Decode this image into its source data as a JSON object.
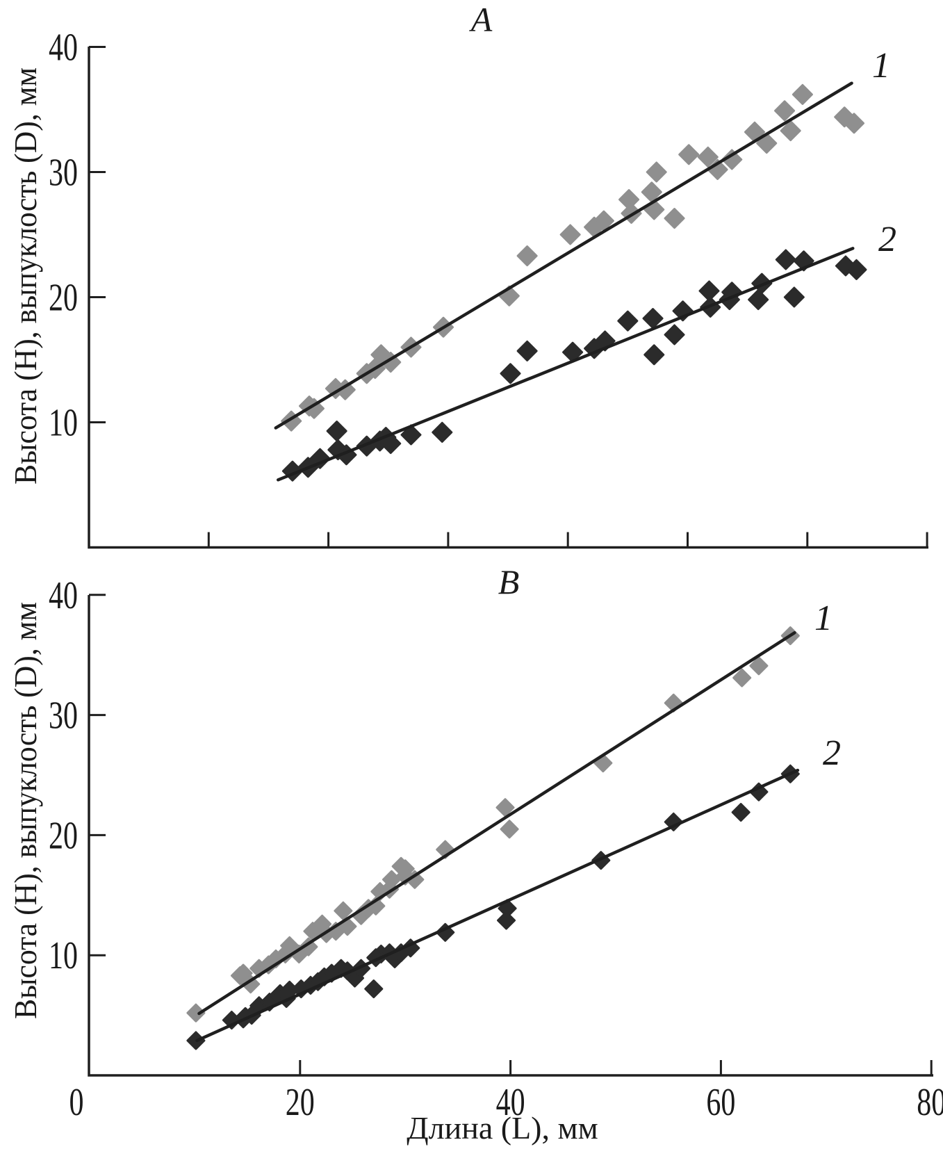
{
  "axes": {
    "x_title": "Длина (L), мм",
    "y_title": "Высота (H), выпуклость (D), мм"
  },
  "palette": {
    "series1_gray": "#8f8f8f",
    "series2_black": "#2b2b2b",
    "line_color": "#1f1f1f",
    "text_color": "#1a1a1a",
    "background": "#ffffff"
  },
  "chart_data": [
    {
      "type": "scatter",
      "panel_label": "A",
      "xlabel": "Длина (L), мм",
      "ylabel": "Высота (H), выпуклость (D), мм",
      "xlim": [
        0,
        70
      ],
      "ylim": [
        0,
        40
      ],
      "x_ticks": [
        10,
        20,
        30,
        40,
        50,
        60,
        70
      ],
      "x_tick_labels": [],
      "y_ticks": [
        10,
        20,
        30,
        40
      ],
      "y_tick_labels": [
        "10",
        "20",
        "30",
        "40"
      ],
      "grid": false,
      "legend_position": "inline-right",
      "series": [
        {
          "name": "1",
          "marker": "diamond",
          "color": "#8f8f8f",
          "label_at": [
            66.2,
            38.6
          ],
          "trend_line": {
            "x1": 15.6,
            "y1": 9.55,
            "x2": 63.7,
            "y2": 37.1
          },
          "points": [
            [
              16.9,
              10.1
            ],
            [
              18.4,
              11.3
            ],
            [
              18.8,
              11.1
            ],
            [
              20.6,
              12.7
            ],
            [
              21.4,
              12.6
            ],
            [
              23.2,
              13.9
            ],
            [
              23.9,
              14.3
            ],
            [
              24.4,
              15.4
            ],
            [
              25.2,
              14.8
            ],
            [
              26.9,
              16.0
            ],
            [
              29.6,
              17.6
            ],
            [
              35.1,
              20.1
            ],
            [
              36.6,
              23.3
            ],
            [
              40.2,
              25.0
            ],
            [
              42.2,
              25.6
            ],
            [
              43.0,
              26.1
            ],
            [
              45.1,
              27.8
            ],
            [
              45.3,
              26.7
            ],
            [
              47.0,
              28.4
            ],
            [
              47.2,
              27.0
            ],
            [
              47.4,
              30.0
            ],
            [
              48.9,
              26.3
            ],
            [
              50.1,
              31.4
            ],
            [
              51.7,
              31.2
            ],
            [
              52.5,
              30.2
            ],
            [
              53.7,
              31.0
            ],
            [
              55.6,
              33.2
            ],
            [
              56.6,
              32.3
            ],
            [
              58.1,
              34.9
            ],
            [
              58.6,
              33.3
            ],
            [
              59.6,
              36.2
            ],
            [
              63.1,
              34.4
            ],
            [
              63.9,
              33.9
            ]
          ]
        },
        {
          "name": "2",
          "marker": "diamond",
          "color": "#2b2b2b",
          "label_at": [
            66.7,
            24.7
          ],
          "trend_line": {
            "x1": 15.8,
            "y1": 5.4,
            "x2": 63.8,
            "y2": 23.9
          },
          "points": [
            [
              17.0,
              6.1
            ],
            [
              18.3,
              6.4
            ],
            [
              19.3,
              7.1
            ],
            [
              20.7,
              9.3
            ],
            [
              20.8,
              7.8
            ],
            [
              21.5,
              7.4
            ],
            [
              23.2,
              8.1
            ],
            [
              24.3,
              8.5
            ],
            [
              24.8,
              8.8
            ],
            [
              25.2,
              8.3
            ],
            [
              26.9,
              9.0
            ],
            [
              29.5,
              9.2
            ],
            [
              35.2,
              13.9
            ],
            [
              36.6,
              15.7
            ],
            [
              40.4,
              15.6
            ],
            [
              42.2,
              15.9
            ],
            [
              43.1,
              16.5
            ],
            [
              45.0,
              18.1
            ],
            [
              47.1,
              18.3
            ],
            [
              47.2,
              15.4
            ],
            [
              48.9,
              17.0
            ],
            [
              49.6,
              18.9
            ],
            [
              51.8,
              20.5
            ],
            [
              51.9,
              19.2
            ],
            [
              53.5,
              19.8
            ],
            [
              53.7,
              20.4
            ],
            [
              55.9,
              19.8
            ],
            [
              56.2,
              21.1
            ],
            [
              58.2,
              23.0
            ],
            [
              58.9,
              20.0
            ],
            [
              59.7,
              22.9
            ],
            [
              63.2,
              22.5
            ],
            [
              64.1,
              22.2
            ]
          ]
        }
      ]
    },
    {
      "type": "scatter",
      "panel_label": "B",
      "xlabel": "Длина (L), мм",
      "ylabel": "Высота (H), выпуклость (D), мм",
      "xlim": [
        0,
        80
      ],
      "ylim": [
        0,
        40
      ],
      "x_ticks": [
        20,
        40,
        60,
        80
      ],
      "x_tick_labels": [
        "0",
        "20",
        "40",
        "60",
        "80"
      ],
      "y_ticks": [
        10,
        20,
        30,
        40
      ],
      "y_tick_labels": [
        "10",
        "20",
        "30",
        "40"
      ],
      "grid": false,
      "legend_position": "inline-right",
      "series": [
        {
          "name": "1",
          "marker": "diamond",
          "color": "#8f8f8f",
          "label_at": [
            69.8,
            38.2
          ],
          "trend_line": {
            "x1": 10.4,
            "y1": 5.15,
            "x2": 67.0,
            "y2": 36.85
          },
          "points": [
            [
              10.1,
              5.2
            ],
            [
              14.3,
              8.3
            ],
            [
              14.6,
              8.5
            ],
            [
              15.3,
              7.6
            ],
            [
              16.1,
              8.9
            ],
            [
              17.0,
              9.2
            ],
            [
              17.7,
              9.7
            ],
            [
              18.6,
              10.1
            ],
            [
              19.0,
              10.8
            ],
            [
              19.9,
              10.1
            ],
            [
              20.8,
              10.7
            ],
            [
              21.2,
              12.0
            ],
            [
              22.1,
              12.6
            ],
            [
              22.5,
              11.8
            ],
            [
              23.4,
              12.0
            ],
            [
              24.1,
              13.7
            ],
            [
              24.5,
              12.4
            ],
            [
              25.8,
              13.3
            ],
            [
              26.5,
              13.9
            ],
            [
              27.2,
              14.1
            ],
            [
              27.6,
              15.3
            ],
            [
              28.5,
              15.5
            ],
            [
              28.7,
              16.3
            ],
            [
              29.6,
              17.4
            ],
            [
              30.0,
              17.2
            ],
            [
              30.0,
              16.6
            ],
            [
              30.9,
              16.3
            ],
            [
              33.8,
              18.8
            ],
            [
              39.5,
              22.3
            ],
            [
              39.9,
              20.5
            ],
            [
              48.8,
              26.0
            ],
            [
              55.5,
              31.0
            ],
            [
              62.0,
              33.1
            ],
            [
              63.6,
              34.1
            ],
            [
              66.6,
              36.6
            ]
          ]
        },
        {
          "name": "2",
          "marker": "diamond",
          "color": "#2b2b2b",
          "label_at": [
            70.6,
            26.9
          ],
          "trend_line": {
            "x1": 10.2,
            "y1": 2.9,
            "x2": 67.3,
            "y2": 25.4
          },
          "points": [
            [
              10.1,
              2.9
            ],
            [
              13.5,
              4.6
            ],
            [
              14.6,
              4.7
            ],
            [
              14.8,
              4.9
            ],
            [
              15.4,
              5.0
            ],
            [
              16.1,
              5.8
            ],
            [
              17.1,
              6.1
            ],
            [
              18.1,
              6.8
            ],
            [
              18.7,
              6.4
            ],
            [
              19.0,
              7.1
            ],
            [
              20.1,
              7.2
            ],
            [
              21.0,
              7.5
            ],
            [
              21.7,
              7.8
            ],
            [
              22.3,
              8.2
            ],
            [
              23.0,
              8.5
            ],
            [
              23.9,
              8.9
            ],
            [
              24.5,
              8.7
            ],
            [
              25.2,
              8.1
            ],
            [
              25.8,
              8.9
            ],
            [
              27.0,
              7.2
            ],
            [
              27.2,
              9.8
            ],
            [
              27.7,
              10.1
            ],
            [
              28.5,
              10.2
            ],
            [
              29.0,
              9.7
            ],
            [
              29.6,
              10.2
            ],
            [
              30.5,
              10.6
            ],
            [
              33.8,
              11.9
            ],
            [
              39.6,
              12.9
            ],
            [
              39.7,
              13.9
            ],
            [
              48.6,
              17.9
            ],
            [
              55.5,
              21.1
            ],
            [
              61.9,
              21.9
            ],
            [
              63.6,
              23.6
            ],
            [
              66.6,
              25.1
            ]
          ]
        }
      ]
    }
  ]
}
